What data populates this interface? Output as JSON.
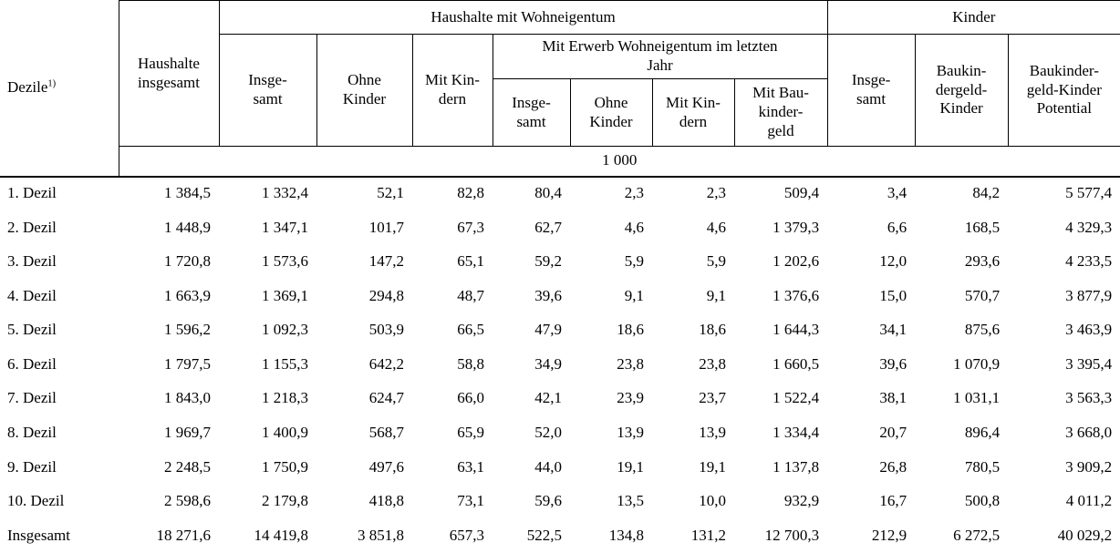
{
  "header": {
    "dezile": "Dezile",
    "dezile_footnote": "1)",
    "haushalte_insgesamt": "Haushalte\ninsgesamt",
    "group_wohneigentum": "Haushalte mit Wohneigentum",
    "group_kinder": "Kinder",
    "we_insgesamt": "Insge-\nsamt",
    "we_ohne_kinder": "Ohne\nKinder",
    "we_mit_kindern": "Mit Kin-\ndern",
    "group_erwerb": "Mit Erwerb Wohneigentum im letzten\nJahr",
    "erwerb_insgesamt": "Insge-\nsamt",
    "erwerb_ohne_kinder": "Ohne\nKinder",
    "erwerb_mit_kindern": "Mit Kin-\ndern",
    "erwerb_mit_baukindergeld": "Mit Bau-\nkinder-\ngeld",
    "kinder_insgesamt": "Insge-\nsamt",
    "kinder_baukindergeld_kinder": "Baukin-\ndergeld-\nKinder",
    "kinder_baukindergeld_potential": "Baukinder-\ngeld-Kinder\nPotential"
  },
  "unit_row": "1 000",
  "rows": [
    {
      "label": "1. Dezil",
      "values": [
        "1 384,5",
        "1 332,4",
        "52,1",
        "82,8",
        "80,4",
        "2,3",
        "2,3",
        "509,4",
        "3,4",
        "84,2",
        "5 577,4"
      ]
    },
    {
      "label": "2. Dezil",
      "values": [
        "1 448,9",
        "1 347,1",
        "101,7",
        "67,3",
        "62,7",
        "4,6",
        "4,6",
        "1 379,3",
        "6,6",
        "168,5",
        "4 329,3"
      ]
    },
    {
      "label": "3. Dezil",
      "values": [
        "1 720,8",
        "1 573,6",
        "147,2",
        "65,1",
        "59,2",
        "5,9",
        "5,9",
        "1 202,6",
        "12,0",
        "293,6",
        "4 233,5"
      ]
    },
    {
      "label": "4. Dezil",
      "values": [
        "1 663,9",
        "1 369,1",
        "294,8",
        "48,7",
        "39,6",
        "9,1",
        "9,1",
        "1 376,6",
        "15,0",
        "570,7",
        "3 877,9"
      ]
    },
    {
      "label": "5. Dezil",
      "values": [
        "1 596,2",
        "1 092,3",
        "503,9",
        "66,5",
        "47,9",
        "18,6",
        "18,6",
        "1 644,3",
        "34,1",
        "875,6",
        "3 463,9"
      ]
    },
    {
      "label": "6. Dezil",
      "values": [
        "1 797,5",
        "1 155,3",
        "642,2",
        "58,8",
        "34,9",
        "23,8",
        "23,8",
        "1 660,5",
        "39,6",
        "1 070,9",
        "3 395,4"
      ]
    },
    {
      "label": "7. Dezil",
      "values": [
        "1 843,0",
        "1 218,3",
        "624,7",
        "66,0",
        "42,1",
        "23,9",
        "23,7",
        "1 522,4",
        "38,1",
        "1 031,1",
        "3 563,3"
      ]
    },
    {
      "label": "8. Dezil",
      "values": [
        "1 969,7",
        "1 400,9",
        "568,7",
        "65,9",
        "52,0",
        "13,9",
        "13,9",
        "1 334,4",
        "20,7",
        "896,4",
        "3 668,0"
      ]
    },
    {
      "label": "9. Dezil",
      "values": [
        "2 248,5",
        "1 750,9",
        "497,6",
        "63,1",
        "44,0",
        "19,1",
        "19,1",
        "1 137,8",
        "26,8",
        "780,5",
        "3 909,2"
      ]
    },
    {
      "label": "10. Dezil",
      "values": [
        "2 598,6",
        "2 179,8",
        "418,8",
        "73,1",
        "59,6",
        "13,5",
        "10,0",
        "932,9",
        "16,7",
        "500,8",
        "4 011,2"
      ]
    },
    {
      "label": "Insgesamt",
      "values": [
        "18 271,6",
        "14 419,8",
        "3 851,8",
        "657,3",
        "522,5",
        "134,8",
        "131,2",
        "12 700,3",
        "212,9",
        "6 272,5",
        "40 029,2"
      ]
    }
  ]
}
